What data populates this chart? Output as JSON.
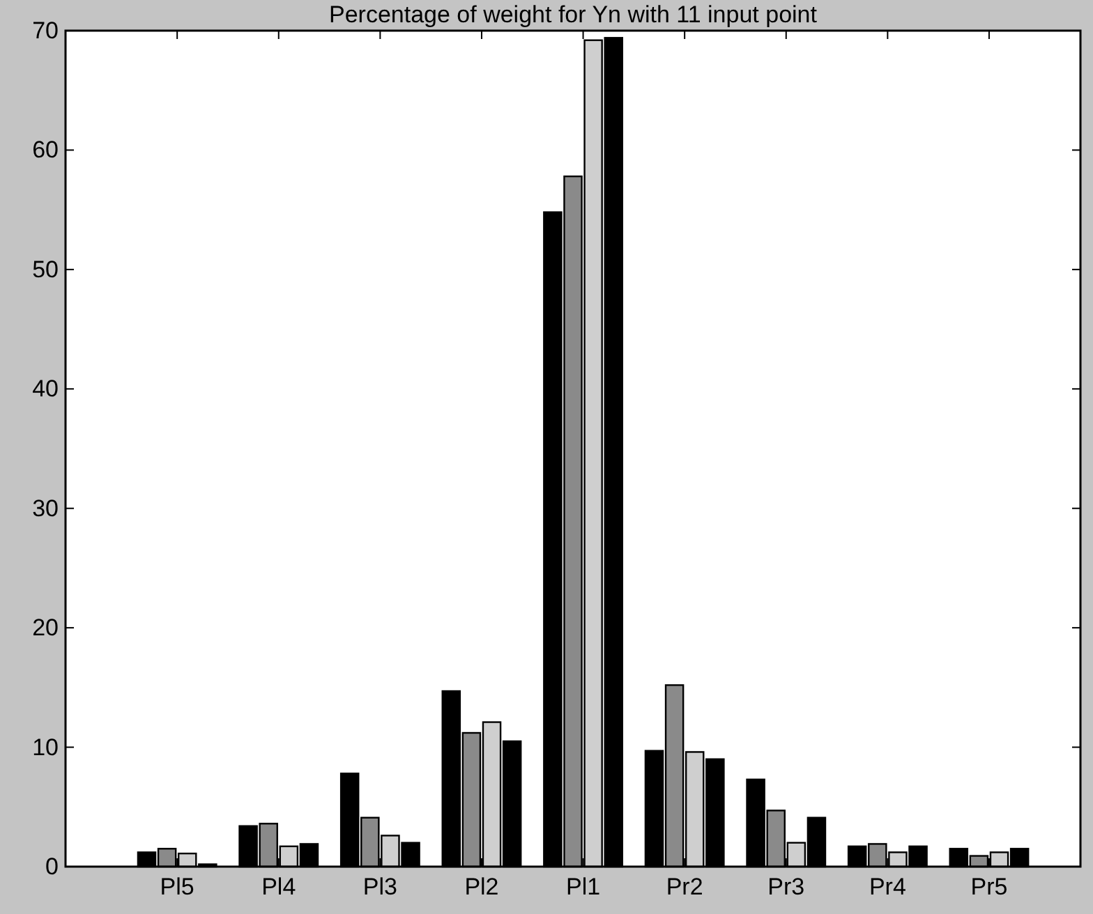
{
  "chart_data": {
    "type": "bar",
    "title": "Percentage of weight for Yn with 11 input point",
    "categories": [
      "Pl5",
      "Pl4",
      "Pl3",
      "Pl2",
      "Pl1",
      "Pr2",
      "Pr3",
      "Pr4",
      "Pr5"
    ],
    "series": [
      {
        "color": "#000000",
        "values": [
          1.2,
          3.4,
          7.8,
          14.7,
          54.8,
          9.7,
          7.3,
          1.7,
          1.5
        ]
      },
      {
        "color": "#8a8a8a",
        "values": [
          1.5,
          3.6,
          4.1,
          11.2,
          57.8,
          15.2,
          4.7,
          1.9,
          0.9
        ]
      },
      {
        "color": "#cfcfcf",
        "values": [
          1.1,
          1.7,
          2.6,
          12.1,
          69.2,
          9.6,
          2.0,
          1.2,
          1.2
        ]
      },
      {
        "color": "#000000",
        "values": [
          0.2,
          1.9,
          2.0,
          10.5,
          69.4,
          9.0,
          4.1,
          1.7,
          1.5
        ]
      }
    ],
    "ylim": [
      0,
      70
    ],
    "yticks": [
      0,
      10,
      20,
      30,
      40,
      50,
      60,
      70
    ],
    "grid": false
  }
}
